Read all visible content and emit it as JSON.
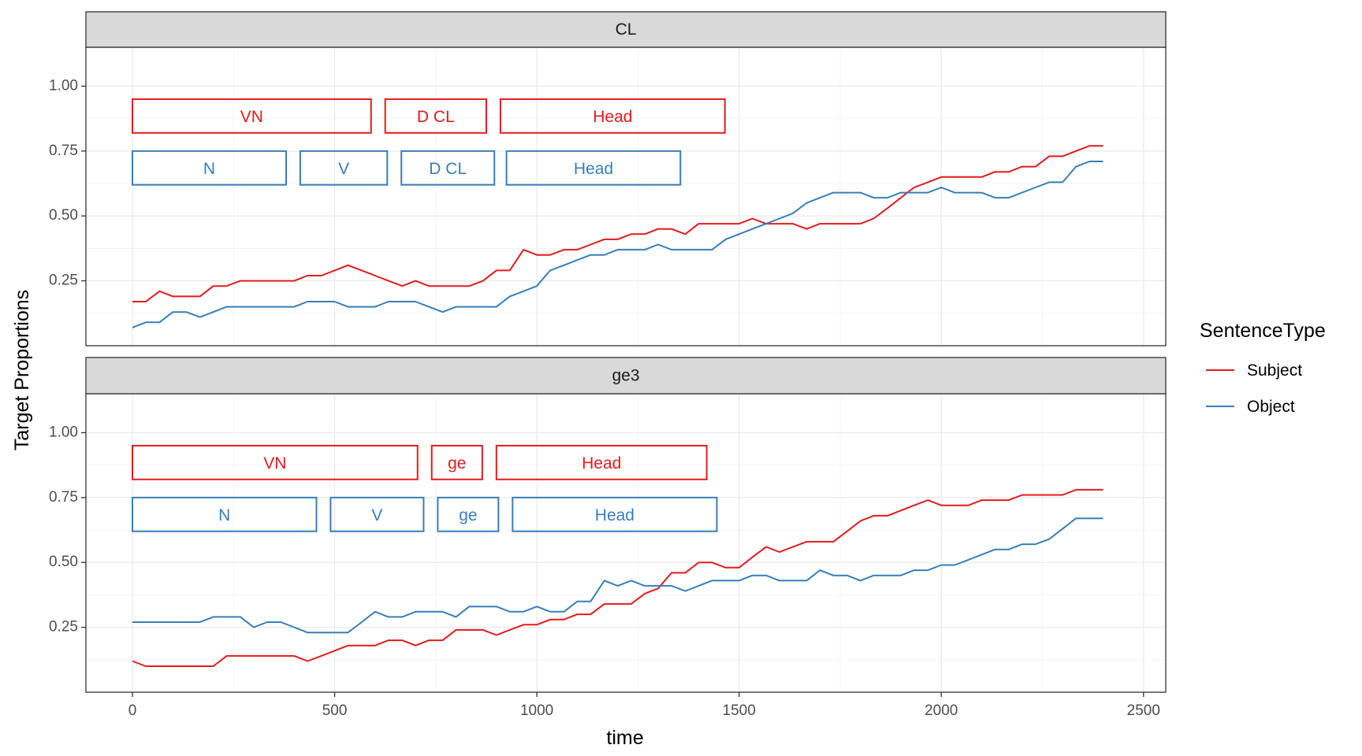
{
  "chart_data": {
    "type": "line",
    "xlabel": "time",
    "ylabel": "Target Proportions",
    "xlim": [
      -115,
      2555
    ],
    "ylim": [
      0.0,
      1.15
    ],
    "x_ticks": [
      "0",
      "500",
      "1000",
      "1500",
      "2000",
      "2500"
    ],
    "x_tick_values": [
      0,
      500,
      1000,
      1500,
      2000,
      2500
    ],
    "y_ticks": [
      "0.25",
      "0.50",
      "0.75",
      "1.00"
    ],
    "y_tick_values": [
      0.25,
      0.5,
      0.75,
      1.0
    ],
    "grid": true,
    "legend": {
      "title": "SentenceType",
      "position": "right",
      "entries": [
        {
          "label": "Subject",
          "color": "#e41a1c"
        },
        {
          "label": "Object",
          "color": "#377eb8"
        }
      ]
    },
    "colors": {
      "Subject": "#e41a1c",
      "Object": "#377eb8"
    },
    "panels": [
      {
        "strip": "CL",
        "segments": [
          {
            "label": "VN",
            "series": "Subject",
            "x0": 0,
            "x1": 590,
            "y0": 0.82,
            "y1": 0.95
          },
          {
            "label": "D CL",
            "series": "Subject",
            "x0": 625,
            "x1": 875,
            "y0": 0.82,
            "y1": 0.95
          },
          {
            "label": "Head",
            "series": "Subject",
            "x0": 910,
            "x1": 1465,
            "y0": 0.82,
            "y1": 0.95
          },
          {
            "label": "N",
            "series": "Object",
            "x0": 0,
            "x1": 380,
            "y0": 0.62,
            "y1": 0.75
          },
          {
            "label": "V",
            "series": "Object",
            "x0": 415,
            "x1": 630,
            "y0": 0.62,
            "y1": 0.75
          },
          {
            "label": "D CL",
            "series": "Object",
            "x0": 665,
            "x1": 895,
            "y0": 0.62,
            "y1": 0.75
          },
          {
            "label": "Head",
            "series": "Object",
            "x0": 925,
            "x1": 1355,
            "y0": 0.62,
            "y1": 0.75
          }
        ],
        "series": [
          {
            "name": "Subject",
            "x": [
              0,
              33,
              67,
              100,
              133,
              167,
              200,
              233,
              267,
              300,
              333,
              367,
              400,
              433,
              467,
              500,
              533,
              567,
              600,
              633,
              667,
              700,
              733,
              767,
              800,
              833,
              867,
              900,
              933,
              967,
              1000,
              1033,
              1067,
              1100,
              1133,
              1167,
              1200,
              1233,
              1267,
              1300,
              1333,
              1367,
              1400,
              1433,
              1467,
              1500,
              1533,
              1567,
              1600,
              1633,
              1667,
              1700,
              1733,
              1767,
              1800,
              1833,
              1867,
              1900,
              1933,
              1967,
              2000,
              2033,
              2067,
              2100,
              2133,
              2167,
              2200,
              2233,
              2267,
              2300,
              2333,
              2367,
              2400
            ],
            "y": [
              0.17,
              0.17,
              0.21,
              0.19,
              0.19,
              0.19,
              0.23,
              0.23,
              0.25,
              0.25,
              0.25,
              0.25,
              0.25,
              0.27,
              0.27,
              0.29,
              0.31,
              0.29,
              0.27,
              0.25,
              0.23,
              0.25,
              0.23,
              0.23,
              0.23,
              0.23,
              0.25,
              0.29,
              0.29,
              0.37,
              0.35,
              0.35,
              0.37,
              0.37,
              0.39,
              0.41,
              0.41,
              0.43,
              0.43,
              0.45,
              0.45,
              0.43,
              0.47,
              0.47,
              0.47,
              0.47,
              0.49,
              0.47,
              0.47,
              0.47,
              0.45,
              0.47,
              0.47,
              0.47,
              0.47,
              0.49,
              0.53,
              0.57,
              0.61,
              0.63,
              0.65,
              0.65,
              0.65,
              0.65,
              0.67,
              0.67,
              0.69,
              0.69,
              0.73,
              0.73,
              0.75,
              0.77,
              0.77
            ]
          },
          {
            "name": "Object",
            "x": [
              0,
              33,
              67,
              100,
              133,
              167,
              200,
              233,
              267,
              300,
              333,
              367,
              400,
              433,
              467,
              500,
              533,
              567,
              600,
              633,
              667,
              700,
              733,
              767,
              800,
              833,
              867,
              900,
              933,
              967,
              1000,
              1033,
              1067,
              1100,
              1133,
              1167,
              1200,
              1233,
              1267,
              1300,
              1333,
              1367,
              1400,
              1433,
              1467,
              1500,
              1533,
              1567,
              1600,
              1633,
              1667,
              1700,
              1733,
              1767,
              1800,
              1833,
              1867,
              1900,
              1933,
              1967,
              2000,
              2033,
              2067,
              2100,
              2133,
              2167,
              2200,
              2233,
              2267,
              2300,
              2333,
              2367,
              2400
            ],
            "y": [
              0.07,
              0.09,
              0.09,
              0.13,
              0.13,
              0.11,
              0.13,
              0.15,
              0.15,
              0.15,
              0.15,
              0.15,
              0.15,
              0.17,
              0.17,
              0.17,
              0.15,
              0.15,
              0.15,
              0.17,
              0.17,
              0.17,
              0.15,
              0.13,
              0.15,
              0.15,
              0.15,
              0.15,
              0.19,
              0.21,
              0.23,
              0.29,
              0.31,
              0.33,
              0.35,
              0.35,
              0.37,
              0.37,
              0.37,
              0.39,
              0.37,
              0.37,
              0.37,
              0.37,
              0.41,
              0.43,
              0.45,
              0.47,
              0.49,
              0.51,
              0.55,
              0.57,
              0.59,
              0.59,
              0.59,
              0.57,
              0.57,
              0.59,
              0.59,
              0.59,
              0.61,
              0.59,
              0.59,
              0.59,
              0.57,
              0.57,
              0.59,
              0.61,
              0.63,
              0.63,
              0.69,
              0.71,
              0.71
            ]
          }
        ]
      },
      {
        "strip": "ge3",
        "segments": [
          {
            "label": "VN",
            "series": "Subject",
            "x0": 0,
            "x1": 705,
            "y0": 0.82,
            "y1": 0.95
          },
          {
            "label": "ge",
            "series": "Subject",
            "x0": 740,
            "x1": 865,
            "y0": 0.82,
            "y1": 0.95
          },
          {
            "label": "Head",
            "series": "Subject",
            "x0": 900,
            "x1": 1420,
            "y0": 0.82,
            "y1": 0.95
          },
          {
            "label": "N",
            "series": "Object",
            "x0": 0,
            "x1": 455,
            "y0": 0.62,
            "y1": 0.75
          },
          {
            "label": "V",
            "series": "Object",
            "x0": 490,
            "x1": 720,
            "y0": 0.62,
            "y1": 0.75
          },
          {
            "label": "ge",
            "series": "Object",
            "x0": 755,
            "x1": 905,
            "y0": 0.62,
            "y1": 0.75
          },
          {
            "label": "Head",
            "series": "Object",
            "x0": 940,
            "x1": 1445,
            "y0": 0.62,
            "y1": 0.75
          }
        ],
        "series": [
          {
            "name": "Subject",
            "x": [
              0,
              33,
              67,
              100,
              133,
              167,
              200,
              233,
              267,
              300,
              333,
              367,
              400,
              433,
              467,
              500,
              533,
              567,
              600,
              633,
              667,
              700,
              733,
              767,
              800,
              833,
              867,
              900,
              933,
              967,
              1000,
              1033,
              1067,
              1100,
              1133,
              1167,
              1200,
              1233,
              1267,
              1300,
              1333,
              1367,
              1400,
              1433,
              1467,
              1500,
              1533,
              1567,
              1600,
              1633,
              1667,
              1700,
              1733,
              1767,
              1800,
              1833,
              1867,
              1900,
              1933,
              1967,
              2000,
              2033,
              2067,
              2100,
              2133,
              2167,
              2200,
              2233,
              2267,
              2300,
              2333,
              2367,
              2400
            ],
            "y": [
              0.12,
              0.1,
              0.1,
              0.1,
              0.1,
              0.1,
              0.1,
              0.14,
              0.14,
              0.14,
              0.14,
              0.14,
              0.14,
              0.12,
              0.14,
              0.16,
              0.18,
              0.18,
              0.18,
              0.2,
              0.2,
              0.18,
              0.2,
              0.2,
              0.24,
              0.24,
              0.24,
              0.22,
              0.24,
              0.26,
              0.26,
              0.28,
              0.28,
              0.3,
              0.3,
              0.34,
              0.34,
              0.34,
              0.38,
              0.4,
              0.46,
              0.46,
              0.5,
              0.5,
              0.48,
              0.48,
              0.52,
              0.56,
              0.54,
              0.56,
              0.58,
              0.58,
              0.58,
              0.62,
              0.66,
              0.68,
              0.68,
              0.7,
              0.72,
              0.74,
              0.72,
              0.72,
              0.72,
              0.74,
              0.74,
              0.74,
              0.76,
              0.76,
              0.76,
              0.76,
              0.78,
              0.78,
              0.78
            ]
          },
          {
            "name": "Object",
            "x": [
              0,
              33,
              67,
              100,
              133,
              167,
              200,
              233,
              267,
              300,
              333,
              367,
              400,
              433,
              467,
              500,
              533,
              567,
              600,
              633,
              667,
              700,
              733,
              767,
              800,
              833,
              867,
              900,
              933,
              967,
              1000,
              1033,
              1067,
              1100,
              1133,
              1167,
              1200,
              1233,
              1267,
              1300,
              1333,
              1367,
              1400,
              1433,
              1467,
              1500,
              1533,
              1567,
              1600,
              1633,
              1667,
              1700,
              1733,
              1767,
              1800,
              1833,
              1867,
              1900,
              1933,
              1967,
              2000,
              2033,
              2067,
              2100,
              2133,
              2167,
              2200,
              2233,
              2267,
              2300,
              2333,
              2367,
              2400
            ],
            "y": [
              0.27,
              0.27,
              0.27,
              0.27,
              0.27,
              0.27,
              0.29,
              0.29,
              0.29,
              0.25,
              0.27,
              0.27,
              0.25,
              0.23,
              0.23,
              0.23,
              0.23,
              0.27,
              0.31,
              0.29,
              0.29,
              0.31,
              0.31,
              0.31,
              0.29,
              0.33,
              0.33,
              0.33,
              0.31,
              0.31,
              0.33,
              0.31,
              0.31,
              0.35,
              0.35,
              0.43,
              0.41,
              0.43,
              0.41,
              0.41,
              0.41,
              0.39,
              0.41,
              0.43,
              0.43,
              0.43,
              0.45,
              0.45,
              0.43,
              0.43,
              0.43,
              0.47,
              0.45,
              0.45,
              0.43,
              0.45,
              0.45,
              0.45,
              0.47,
              0.47,
              0.49,
              0.49,
              0.51,
              0.53,
              0.55,
              0.55,
              0.57,
              0.57,
              0.59,
              0.63,
              0.67,
              0.67,
              0.67
            ]
          }
        ]
      }
    ]
  }
}
